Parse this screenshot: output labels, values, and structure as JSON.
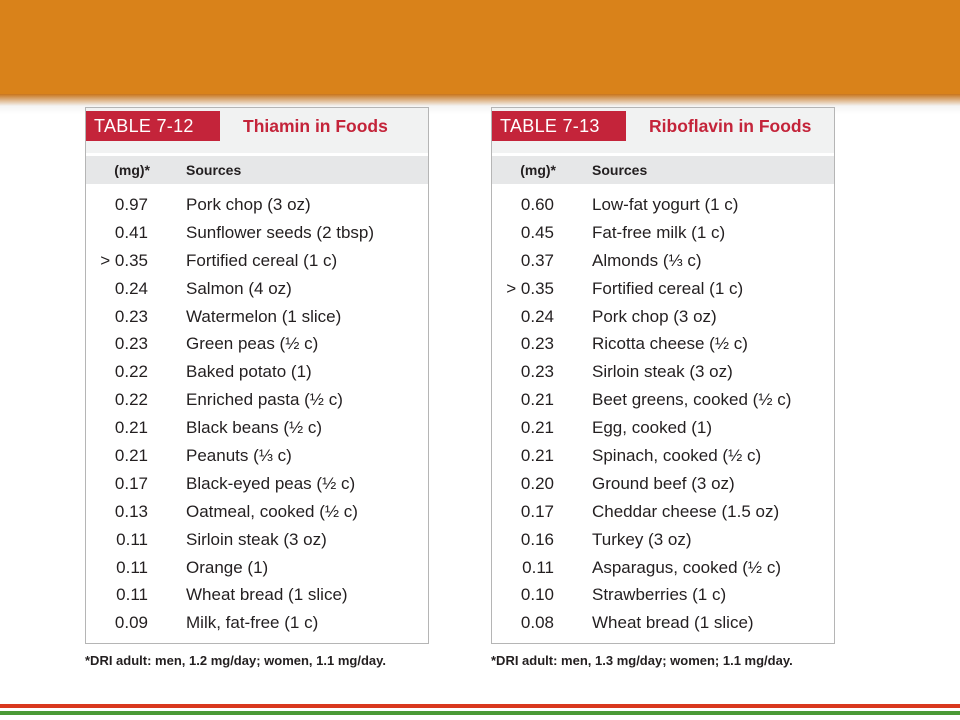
{
  "colors": {
    "band": "#d9821a",
    "tag": "#c4243a",
    "footer_red": "#d9381e",
    "footer_green": "#4a9a36"
  },
  "tables": [
    {
      "tag": "TABLE 7-12",
      "title": "Thiamin in Foods",
      "col_value": "(mg)*",
      "col_source": "Sources",
      "rows": [
        {
          "value": "0.97",
          "source": "Pork chop (3 oz)"
        },
        {
          "value": "0.41",
          "source": "Sunflower seeds (2 tbsp)"
        },
        {
          "value": "> 0.35",
          "source": "Fortified cereal (1 c)"
        },
        {
          "value": "0.24",
          "source": "Salmon (4 oz)"
        },
        {
          "value": "0.23",
          "source": "Watermelon (1 slice)"
        },
        {
          "value": "0.23",
          "source": "Green peas (½ c)"
        },
        {
          "value": "0.22",
          "source": "Baked potato (1)"
        },
        {
          "value": "0.22",
          "source": "Enriched pasta (½ c)"
        },
        {
          "value": "0.21",
          "source": "Black beans (½ c)"
        },
        {
          "value": "0.21",
          "source": "Peanuts (⅓ c)"
        },
        {
          "value": "0.17",
          "source": "Black-eyed peas (½ c)"
        },
        {
          "value": "0.13",
          "source": "Oatmeal, cooked (½ c)"
        },
        {
          "value": "0.11",
          "source": "Sirloin steak (3 oz)"
        },
        {
          "value": "0.11",
          "source": "Orange (1)"
        },
        {
          "value": "0.11",
          "source": "Wheat bread (1 slice)"
        },
        {
          "value": "0.09",
          "source": "Milk, fat-free (1 c)"
        }
      ],
      "footnote": "*DRI adult: men, 1.2 mg/day; women, 1.1 mg/day."
    },
    {
      "tag": "TABLE 7-13",
      "title": "Riboflavin in Foods",
      "col_value": "(mg)*",
      "col_source": "Sources",
      "rows": [
        {
          "value": "0.60",
          "source": "Low-fat yogurt (1 c)"
        },
        {
          "value": "0.45",
          "source": "Fat-free milk (1 c)"
        },
        {
          "value": "0.37",
          "source": "Almonds (⅓ c)"
        },
        {
          "value": "> 0.35",
          "source": "Fortified cereal (1 c)"
        },
        {
          "value": "0.24",
          "source": "Pork chop (3 oz)"
        },
        {
          "value": "0.23",
          "source": "Ricotta cheese (½ c)"
        },
        {
          "value": "0.23",
          "source": "Sirloin steak (3 oz)"
        },
        {
          "value": "0.21",
          "source": "Beet greens, cooked (½ c)"
        },
        {
          "value": "0.21",
          "source": "Egg, cooked (1)"
        },
        {
          "value": "0.21",
          "source": "Spinach, cooked (½ c)"
        },
        {
          "value": "0.20",
          "source": "Ground beef (3 oz)"
        },
        {
          "value": "0.17",
          "source": "Cheddar cheese (1.5 oz)"
        },
        {
          "value": "0.16",
          "source": "Turkey (3 oz)"
        },
        {
          "value": "0.11",
          "source": "Asparagus, cooked (½ c)"
        },
        {
          "value": "0.10",
          "source": "Strawberries (1 c)"
        },
        {
          "value": "0.08",
          "source": "Wheat bread (1 slice)"
        }
      ],
      "footnote": "*DRI adult: men, 1.3 mg/day; women; 1.1 mg/day."
    }
  ]
}
